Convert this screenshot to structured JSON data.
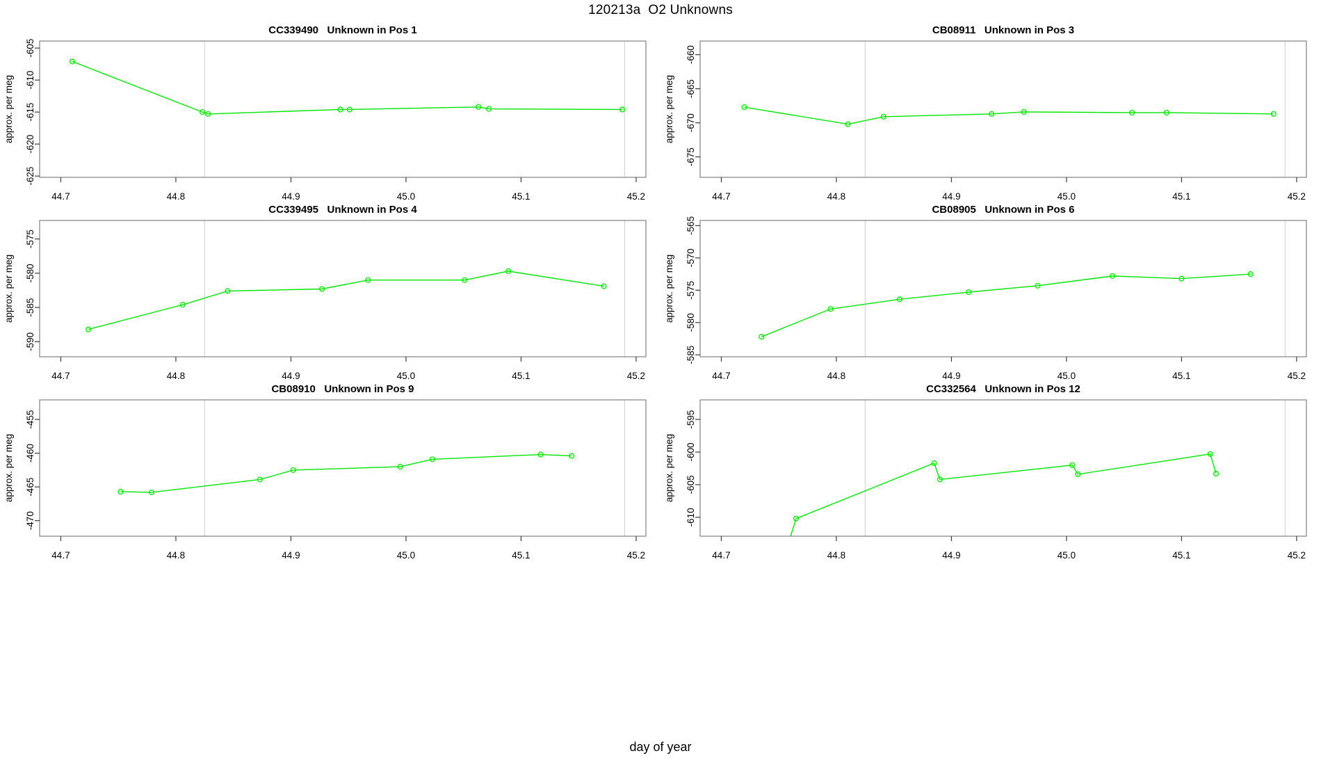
{
  "page": {
    "main_title": "120213a  O2 Unknowns",
    "x_axis_label": "day of year",
    "colors": {
      "line": "#00e600",
      "vline": "#d6d6d6",
      "box": "#808080",
      "tick": "#3a3a3a",
      "text": "#000000"
    }
  },
  "chart_data": [
    {
      "type": "line",
      "id": "CC339490",
      "label": "Unknown in Pos 1",
      "ylabel": "approx. per meg",
      "xlim": [
        44.6816,
        45.2085
      ],
      "ylim": [
        -625.2,
        -603.9
      ],
      "xticks": [
        44.7,
        44.8,
        44.9,
        45.0,
        45.1,
        45.2
      ],
      "yticks": [
        -625,
        -620,
        -615,
        -610,
        -605
      ],
      "vlines": [
        44.825,
        45.19
      ],
      "points": [
        [
          44.71,
          -607.1
        ],
        [
          44.823,
          -615.0
        ],
        [
          44.828,
          -615.3
        ],
        [
          44.943,
          -614.6
        ],
        [
          44.951,
          -614.6
        ],
        [
          45.063,
          -614.2
        ],
        [
          45.072,
          -614.5
        ],
        [
          45.188,
          -614.6
        ]
      ]
    },
    {
      "type": "line",
      "id": "CB08911",
      "label": "Unknown in Pos 3",
      "ylabel": "approx. per meg",
      "xlim": [
        44.6816,
        45.2085
      ],
      "ylim": [
        -678.0,
        -658.0
      ],
      "xticks": [
        44.7,
        44.8,
        44.9,
        45.0,
        45.1,
        45.2
      ],
      "yticks": [
        -675,
        -670,
        -665,
        -660
      ],
      "vlines": [
        44.825,
        45.19
      ],
      "points": [
        [
          44.72,
          -667.7
        ],
        [
          44.81,
          -670.2
        ],
        [
          44.841,
          -669.1
        ],
        [
          44.935,
          -668.7
        ],
        [
          44.963,
          -668.4
        ],
        [
          45.057,
          -668.5
        ],
        [
          45.087,
          -668.5
        ],
        [
          45.18,
          -668.7
        ]
      ]
    },
    {
      "type": "line",
      "id": "CC339495",
      "label": "Unknown in Pos 4",
      "ylabel": "approx. per meg",
      "xlim": [
        44.6816,
        45.2085
      ],
      "ylim": [
        -592.2,
        -572.3
      ],
      "xticks": [
        44.7,
        44.8,
        44.9,
        45.0,
        45.1,
        45.2
      ],
      "yticks": [
        -590,
        -585,
        -580,
        -575
      ],
      "vlines": [
        44.825,
        45.19
      ],
      "points": [
        [
          44.724,
          -588.2
        ],
        [
          44.806,
          -584.6
        ],
        [
          44.845,
          -582.6
        ],
        [
          44.927,
          -582.3
        ],
        [
          44.967,
          -581.0
        ],
        [
          45.051,
          -581.0
        ],
        [
          45.089,
          -579.7
        ],
        [
          45.172,
          -581.9
        ]
      ]
    },
    {
      "type": "line",
      "id": "CB08905",
      "label": "Unknown in Pos 6",
      "ylabel": "approx. per meg",
      "xlim": [
        44.6816,
        45.2085
      ],
      "ylim": [
        -585.3,
        -564.2
      ],
      "xticks": [
        44.7,
        44.8,
        44.9,
        45.0,
        45.1,
        45.2
      ],
      "yticks": [
        -585,
        -580,
        -575,
        -570,
        -565
      ],
      "vlines": [
        44.825,
        45.19
      ],
      "points": [
        [
          44.735,
          -582.2
        ],
        [
          44.795,
          -577.9
        ],
        [
          44.855,
          -576.4
        ],
        [
          44.915,
          -575.3
        ],
        [
          44.975,
          -574.3
        ],
        [
          45.04,
          -572.8
        ],
        [
          45.1,
          -573.2
        ],
        [
          45.16,
          -572.5
        ]
      ]
    },
    {
      "type": "line",
      "id": "CB08910",
      "label": "Unknown in Pos 9",
      "ylabel": "approx. per meg",
      "xlim": [
        44.6816,
        45.2085
      ],
      "ylim": [
        -472.3,
        -452.1
      ],
      "xticks": [
        44.7,
        44.8,
        44.9,
        45.0,
        45.1,
        45.2
      ],
      "yticks": [
        -470,
        -465,
        -460,
        -455
      ],
      "vlines": [
        44.825,
        45.19
      ],
      "points": [
        [
          44.752,
          -465.7
        ],
        [
          44.779,
          -465.8
        ],
        [
          44.873,
          -463.9
        ],
        [
          44.902,
          -462.5
        ],
        [
          44.995,
          -462.0
        ],
        [
          45.023,
          -460.9
        ],
        [
          45.117,
          -460.2
        ],
        [
          45.144,
          -460.4
        ]
      ]
    },
    {
      "type": "line",
      "id": "CC332564",
      "label": "Unknown in Pos 12",
      "ylabel": "approx. per meg",
      "xlim": [
        44.6816,
        45.2085
      ],
      "ylim": [
        -612.9,
        -592.0
      ],
      "xticks": [
        44.7,
        44.8,
        44.9,
        45.0,
        45.1,
        45.2
      ],
      "yticks": [
        -610,
        -605,
        -600,
        -595
      ],
      "vlines": [
        44.825,
        45.19
      ],
      "points": [
        [
          44.753,
          -617.0
        ],
        [
          44.765,
          -610.2
        ],
        [
          44.885,
          -601.7
        ],
        [
          44.89,
          -604.2
        ],
        [
          45.005,
          -602.0
        ],
        [
          45.01,
          -603.4
        ],
        [
          45.125,
          -600.3
        ],
        [
          45.13,
          -603.3
        ]
      ]
    }
  ]
}
